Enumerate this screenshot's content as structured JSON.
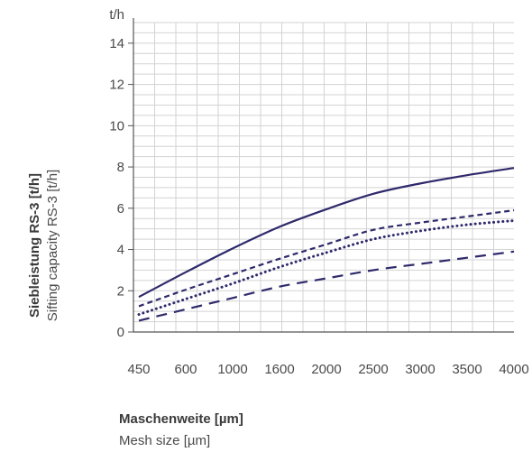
{
  "chart_data": {
    "type": "line",
    "categories": [
      "450",
      "600",
      "1000",
      "1600",
      "2000",
      "2500",
      "3000",
      "3500",
      "4000"
    ],
    "yunit": "t/h",
    "ylim": [
      0,
      15
    ],
    "yticks": [
      0,
      2,
      4,
      6,
      8,
      10,
      12,
      14
    ],
    "ylabel_main": "Siebleistung RS-3 [t/h]",
    "ylabel_sub": "Sifting capacity RS-3 [t/h]",
    "xlabel_main": "Maschenweite [µm]",
    "xlabel_sub": "Mesh size [µm]",
    "grid": true,
    "colors": {
      "line": "#2e2a6b",
      "grid": "#d3d3d3",
      "axis": "#555555"
    },
    "series": [
      {
        "style": "solid",
        "values": [
          1.7,
          2.9,
          4.05,
          5.1,
          5.95,
          6.7,
          7.2,
          7.6,
          7.95
        ]
      },
      {
        "style": "short-dash",
        "values": [
          1.25,
          2.05,
          2.8,
          3.55,
          4.25,
          4.95,
          5.3,
          5.6,
          5.9
        ]
      },
      {
        "style": "dotted",
        "values": [
          0.85,
          1.6,
          2.35,
          3.15,
          3.85,
          4.5,
          4.9,
          5.2,
          5.4
        ]
      },
      {
        "style": "long-dash",
        "values": [
          0.55,
          1.1,
          1.65,
          2.2,
          2.6,
          3.0,
          3.3,
          3.6,
          3.9
        ]
      }
    ]
  }
}
